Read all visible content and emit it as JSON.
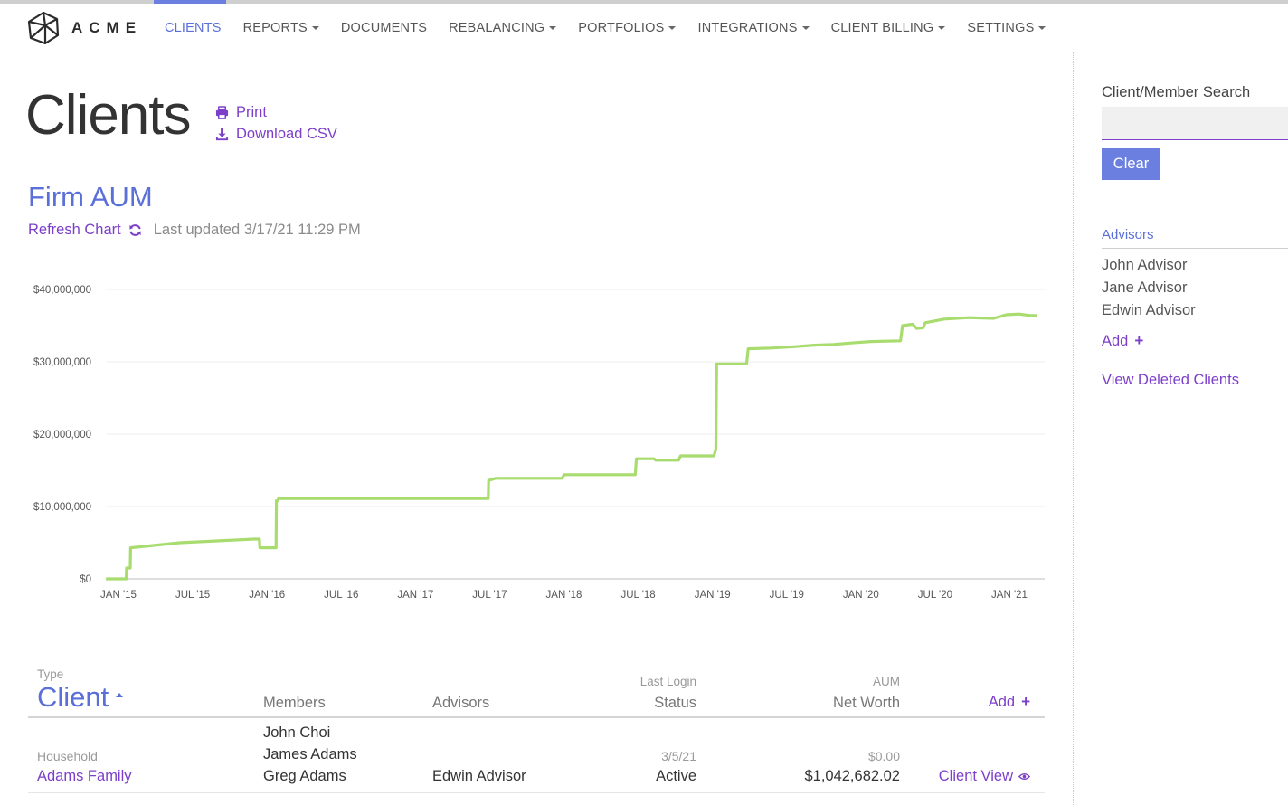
{
  "brand": {
    "name": "ACME"
  },
  "nav": {
    "items": [
      {
        "label": "CLIENTS",
        "active": true,
        "dropdown": false
      },
      {
        "label": "REPORTS",
        "active": false,
        "dropdown": true
      },
      {
        "label": "DOCUMENTS",
        "active": false,
        "dropdown": false
      },
      {
        "label": "REBALANCING",
        "active": false,
        "dropdown": true
      },
      {
        "label": "PORTFOLIOS",
        "active": false,
        "dropdown": true
      },
      {
        "label": "INTEGRATIONS",
        "active": false,
        "dropdown": true
      },
      {
        "label": "CLIENT BILLING",
        "active": false,
        "dropdown": true
      },
      {
        "label": "SETTINGS",
        "active": false,
        "dropdown": true
      }
    ]
  },
  "page": {
    "title": "Clients",
    "print_label": "Print",
    "download_label": "Download CSV"
  },
  "aum": {
    "title": "Firm AUM",
    "refresh_label": "Refresh Chart",
    "last_updated": "Last updated 3/17/21 11:29 PM"
  },
  "chart_data": {
    "type": "line",
    "title": "",
    "xlabel": "",
    "ylabel": "",
    "ylim": [
      0,
      40000000
    ],
    "yticks": [
      "$0",
      "$10,000,000",
      "$20,000,000",
      "$30,000,000",
      "$40,000,000"
    ],
    "xticks": [
      "JAN '15",
      "JUL '15",
      "JAN '16",
      "JUL '16",
      "JAN '17",
      "JUL '17",
      "JAN '18",
      "JUL '18",
      "JAN '19",
      "JUL '19",
      "JAN '20",
      "JUL '20",
      "JAN '21"
    ],
    "grid": true,
    "legend": "none",
    "color": "#a8dc6e",
    "series": [
      {
        "values": [
          [
            "2014-12-01",
            0
          ],
          [
            "2015-01-20",
            0
          ],
          [
            "2015-01-21",
            1500000
          ],
          [
            "2015-01-30",
            1500000
          ],
          [
            "2015-01-31",
            4300000
          ],
          [
            "2015-06-01",
            5000000
          ],
          [
            "2015-12-01",
            5500000
          ],
          [
            "2015-12-15",
            5500000
          ],
          [
            "2015-12-16",
            4300000
          ],
          [
            "2016-01-25",
            4300000
          ],
          [
            "2016-01-26",
            10800000
          ],
          [
            "2016-01-30",
            10800000
          ],
          [
            "2016-01-31",
            11100000
          ],
          [
            "2016-07-01",
            11100000
          ],
          [
            "2017-01-01",
            11100000
          ],
          [
            "2017-07-02",
            11100000
          ],
          [
            "2017-07-03",
            13600000
          ],
          [
            "2017-07-20",
            13900000
          ],
          [
            "2018-01-01",
            13900000
          ],
          [
            "2018-01-05",
            14400000
          ],
          [
            "2018-06-01",
            14400000
          ],
          [
            "2018-06-30",
            14400000
          ],
          [
            "2018-07-03",
            16600000
          ],
          [
            "2018-08-15",
            16600000
          ],
          [
            "2018-08-20",
            16400000
          ],
          [
            "2018-10-15",
            16400000
          ],
          [
            "2018-10-20",
            17000000
          ],
          [
            "2019-01-10",
            17000000
          ],
          [
            "2019-01-15",
            17900000
          ],
          [
            "2019-01-17",
            29700000
          ],
          [
            "2019-04-01",
            29700000
          ],
          [
            "2019-04-05",
            31800000
          ],
          [
            "2019-06-01",
            31900000
          ],
          [
            "2019-08-01",
            32100000
          ],
          [
            "2019-09-15",
            32300000
          ],
          [
            "2019-11-01",
            32400000
          ],
          [
            "2019-12-15",
            32600000
          ],
          [
            "2020-02-01",
            32800000
          ],
          [
            "2020-04-15",
            32900000
          ],
          [
            "2020-04-20",
            35000000
          ],
          [
            "2020-05-15",
            35200000
          ],
          [
            "2020-05-25",
            34600000
          ],
          [
            "2020-06-10",
            34700000
          ],
          [
            "2020-06-15",
            35400000
          ],
          [
            "2020-08-01",
            35900000
          ],
          [
            "2020-10-01",
            36100000
          ],
          [
            "2020-12-01",
            36000000
          ],
          [
            "2021-01-01",
            36500000
          ],
          [
            "2021-02-01",
            36600000
          ],
          [
            "2021-03-01",
            36400000
          ],
          [
            "2021-03-17",
            36400000
          ]
        ]
      }
    ]
  },
  "table": {
    "headers": {
      "type": "Type",
      "client": "Client",
      "members": "Members",
      "advisors": "Advisors",
      "last_login": "Last Login",
      "status": "Status",
      "aum": "AUM",
      "net_worth": "Net Worth",
      "add": "Add"
    },
    "rows": [
      {
        "type": "Household",
        "client": "Adams Family",
        "members": [
          "John Choi",
          "James Adams",
          "Greg Adams"
        ],
        "advisor": "Edwin Advisor",
        "last_login": "3/5/21",
        "status": "Active",
        "aum": "$0.00",
        "net_worth": "$1,042,682.02",
        "action": "Client View"
      }
    ]
  },
  "sidebar": {
    "search_label": "Client/Member Search",
    "search_placeholder": "",
    "clear_label": "Clear",
    "advisors_title": "Advisors",
    "advisors": [
      "John Advisor",
      "Jane Advisor",
      "Edwin Advisor"
    ],
    "add_label": "Add",
    "view_deleted_label": "View Deleted Clients"
  }
}
